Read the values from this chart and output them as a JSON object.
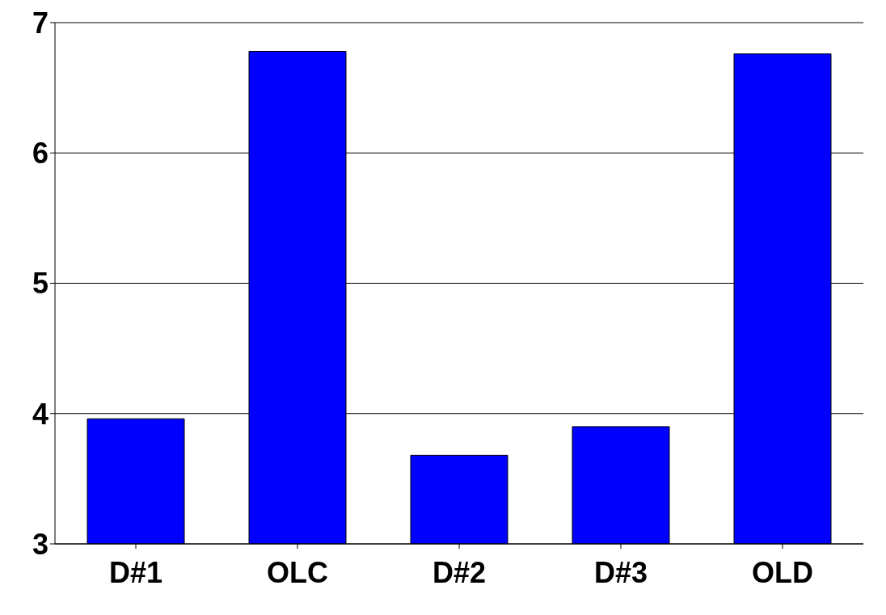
{
  "chart_data": {
    "type": "bar",
    "categories": [
      "D#1",
      "OLC",
      "D#2",
      "D#3",
      "OLD"
    ],
    "values": [
      3.96,
      6.78,
      3.68,
      3.9,
      6.76
    ],
    "color": "#0000ff",
    "ylim": [
      3,
      7
    ],
    "yticks": [
      3,
      4,
      5,
      6,
      7
    ],
    "grid": "y"
  }
}
